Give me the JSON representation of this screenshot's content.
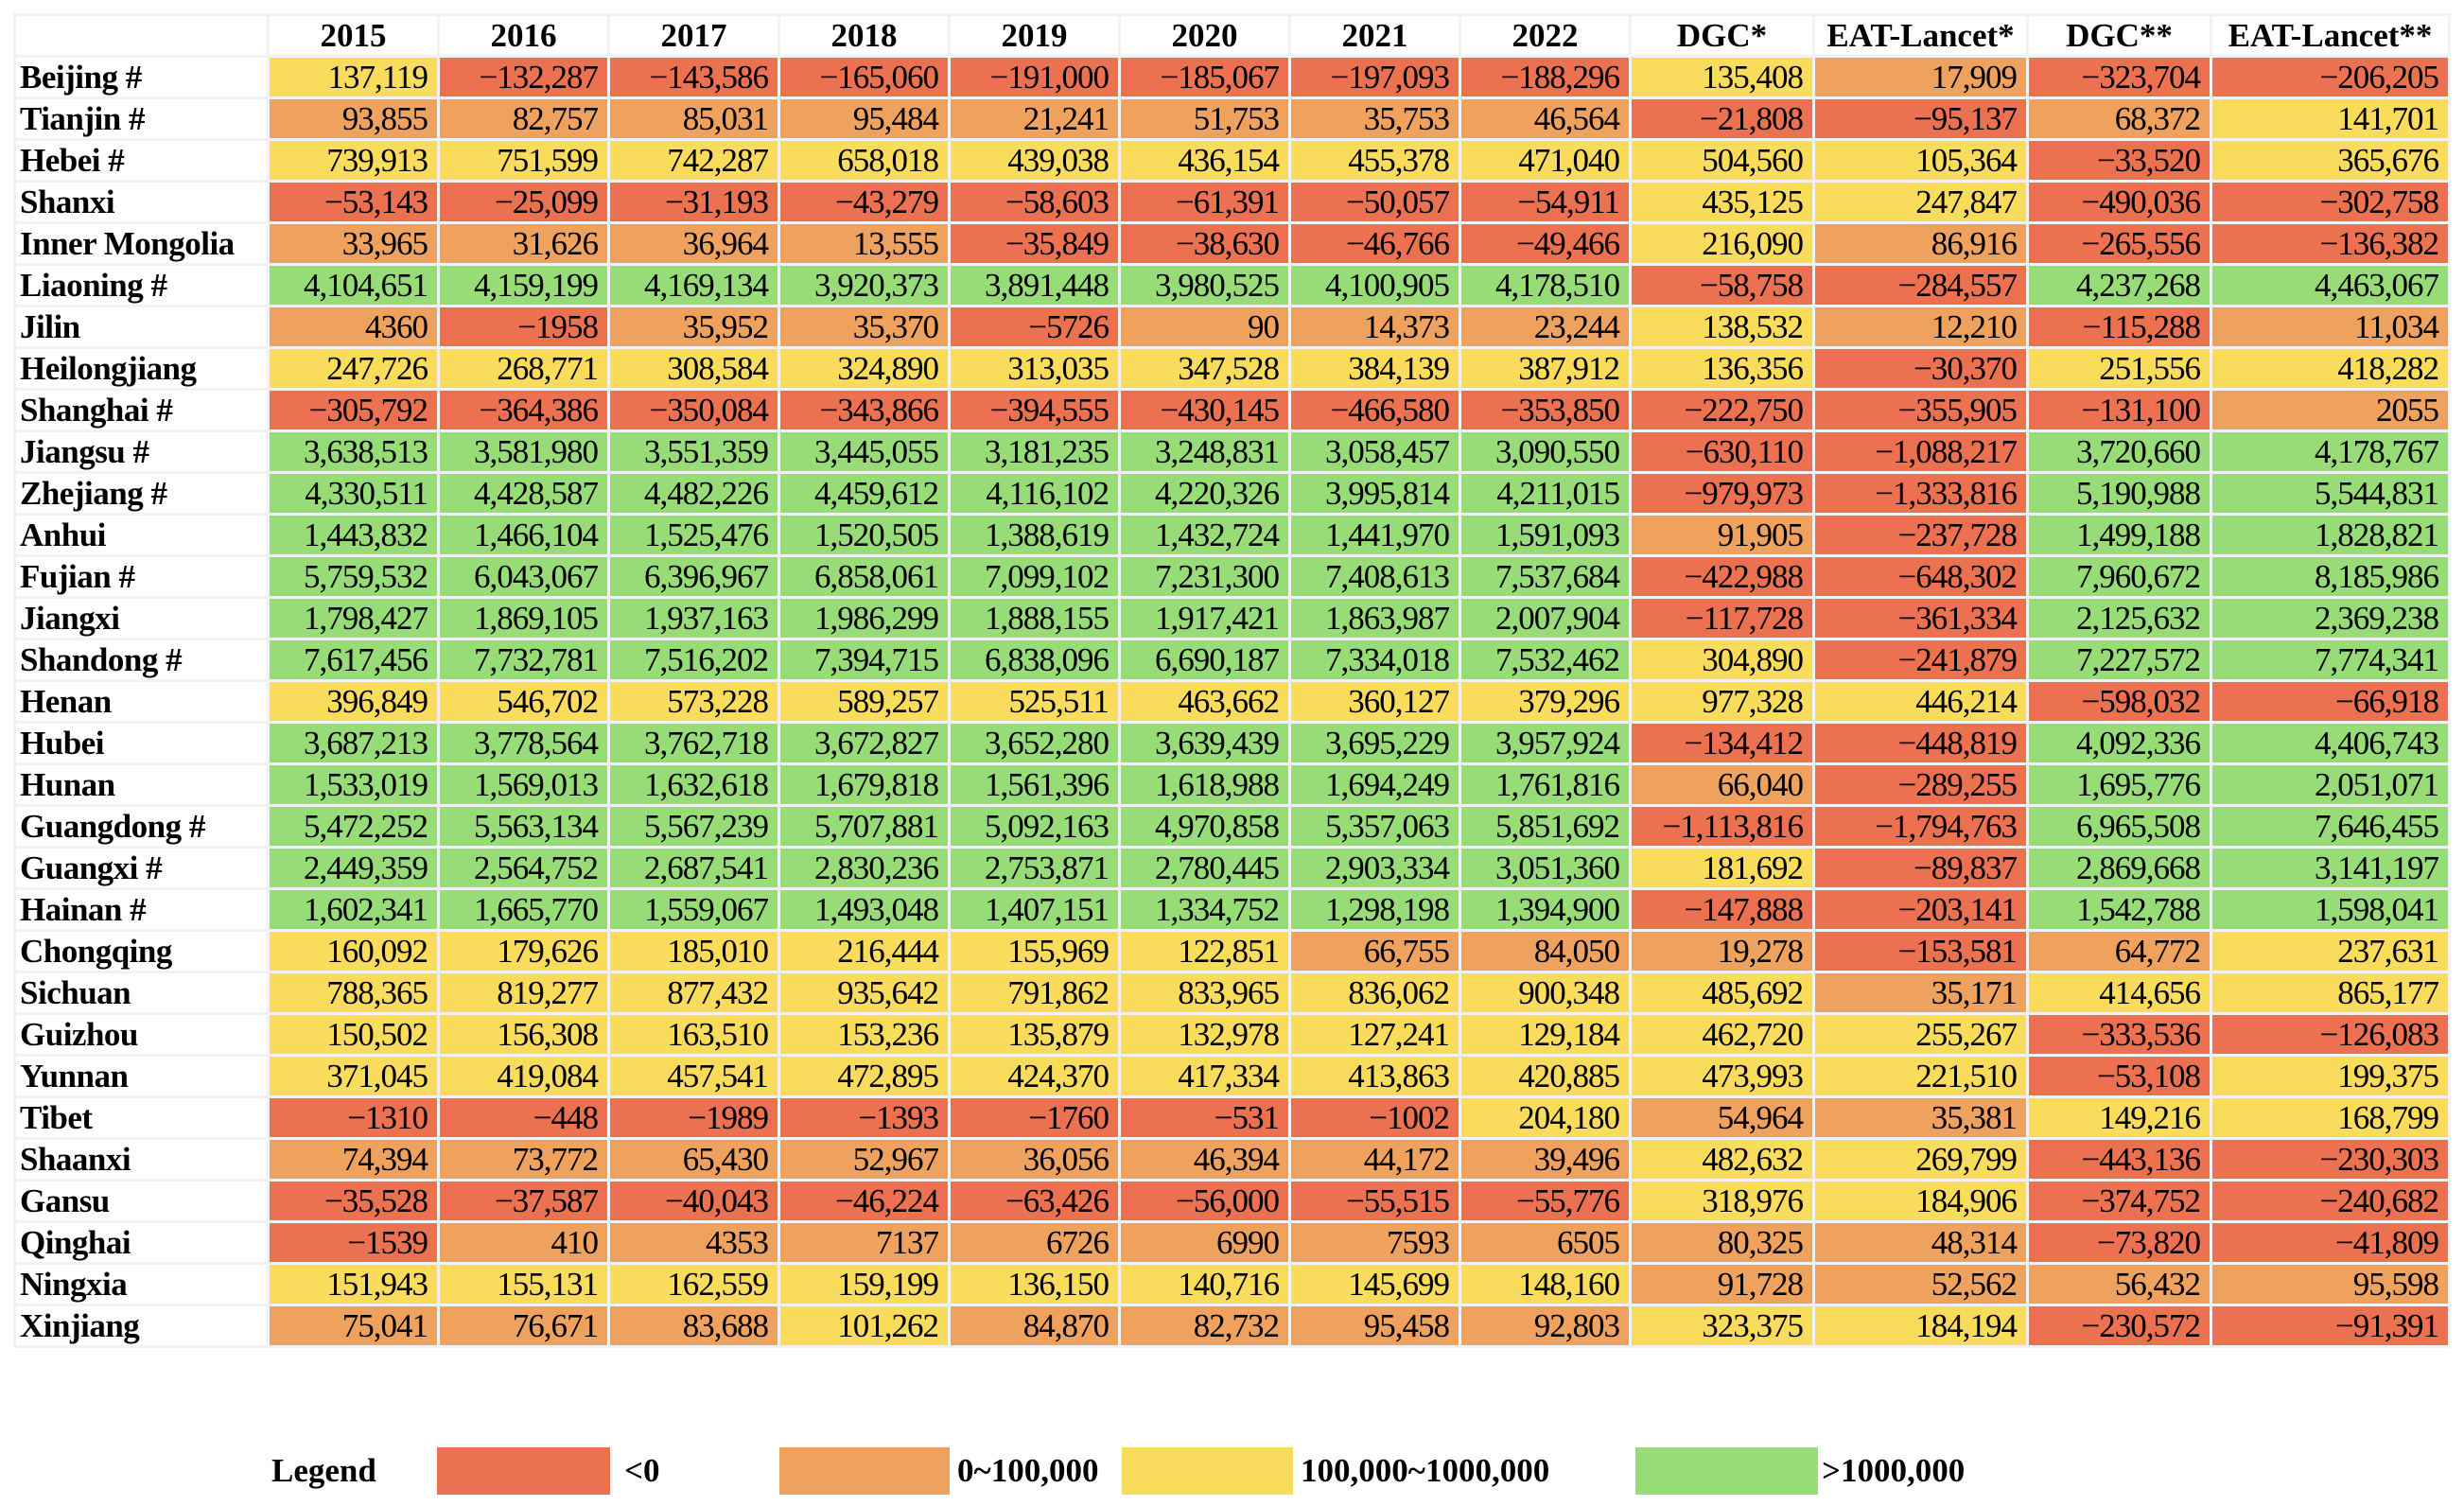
{
  "chart_data": {
    "type": "heatmap",
    "columns": [
      "2015",
      "2016",
      "2017",
      "2018",
      "2019",
      "2020",
      "2021",
      "2022",
      "DGC*",
      "EAT-Lancet*",
      "DGC**",
      "EAT-Lancet**"
    ],
    "rows": [
      {
        "name": "Beijing #",
        "values": [
          "137,119",
          "−132,287",
          "−143,586",
          "−165,060",
          "−191,000",
          "−185,067",
          "−197,093",
          "−188,296",
          "135,408",
          "17,909",
          "−323,704",
          "−206,205"
        ]
      },
      {
        "name": "Tianjin #",
        "values": [
          "93,855",
          "82,757",
          "85,031",
          "95,484",
          "21,241",
          "51,753",
          "35,753",
          "46,564",
          "−21,808",
          "−95,137",
          "68,372",
          "141,701"
        ]
      },
      {
        "name": "Hebei #",
        "values": [
          "739,913",
          "751,599",
          "742,287",
          "658,018",
          "439,038",
          "436,154",
          "455,378",
          "471,040",
          "504,560",
          "105,364",
          "−33,520",
          "365,676"
        ]
      },
      {
        "name": "Shanxi",
        "values": [
          "−53,143",
          "−25,099",
          "−31,193",
          "−43,279",
          "−58,603",
          "−61,391",
          "−50,057",
          "−54,911",
          "435,125",
          "247,847",
          "−490,036",
          "−302,758"
        ]
      },
      {
        "name": "Inner Mongolia",
        "values": [
          "33,965",
          "31,626",
          "36,964",
          "13,555",
          "−35,849",
          "−38,630",
          "−46,766",
          "−49,466",
          "216,090",
          "86,916",
          "−265,556",
          "−136,382"
        ]
      },
      {
        "name": "Liaoning #",
        "values": [
          "4,104,651",
          "4,159,199",
          "4,169,134",
          "3,920,373",
          "3,891,448",
          "3,980,525",
          "4,100,905",
          "4,178,510",
          "−58,758",
          "−284,557",
          "4,237,268",
          "4,463,067"
        ]
      },
      {
        "name": "Jilin",
        "values": [
          "4360",
          "−1958",
          "35,952",
          "35,370",
          "−5726",
          "90",
          "14,373",
          "23,244",
          "138,532",
          "12,210",
          "−115,288",
          "11,034"
        ]
      },
      {
        "name": "Heilongjiang",
        "values": [
          "247,726",
          "268,771",
          "308,584",
          "324,890",
          "313,035",
          "347,528",
          "384,139",
          "387,912",
          "136,356",
          "−30,370",
          "251,556",
          "418,282"
        ]
      },
      {
        "name": "Shanghai #",
        "values": [
          "−305,792",
          "−364,386",
          "−350,084",
          "−343,866",
          "−394,555",
          "−430,145",
          "−466,580",
          "−353,850",
          "−222,750",
          "−355,905",
          "−131,100",
          "2055"
        ]
      },
      {
        "name": "Jiangsu #",
        "values": [
          "3,638,513",
          "3,581,980",
          "3,551,359",
          "3,445,055",
          "3,181,235",
          "3,248,831",
          "3,058,457",
          "3,090,550",
          "−630,110",
          "−1,088,217",
          "3,720,660",
          "4,178,767"
        ]
      },
      {
        "name": "Zhejiang #",
        "values": [
          "4,330,511",
          "4,428,587",
          "4,482,226",
          "4,459,612",
          "4,116,102",
          "4,220,326",
          "3,995,814",
          "4,211,015",
          "−979,973",
          "−1,333,816",
          "5,190,988",
          "5,544,831"
        ]
      },
      {
        "name": "Anhui",
        "values": [
          "1,443,832",
          "1,466,104",
          "1,525,476",
          "1,520,505",
          "1,388,619",
          "1,432,724",
          "1,441,970",
          "1,591,093",
          "91,905",
          "−237,728",
          "1,499,188",
          "1,828,821"
        ]
      },
      {
        "name": "Fujian #",
        "values": [
          "5,759,532",
          "6,043,067",
          "6,396,967",
          "6,858,061",
          "7,099,102",
          "7,231,300",
          "7,408,613",
          "7,537,684",
          "−422,988",
          "−648,302",
          "7,960,672",
          "8,185,986"
        ]
      },
      {
        "name": "Jiangxi",
        "values": [
          "1,798,427",
          "1,869,105",
          "1,937,163",
          "1,986,299",
          "1,888,155",
          "1,917,421",
          "1,863,987",
          "2,007,904",
          "−117,728",
          "−361,334",
          "2,125,632",
          "2,369,238"
        ]
      },
      {
        "name": "Shandong #",
        "values": [
          "7,617,456",
          "7,732,781",
          "7,516,202",
          "7,394,715",
          "6,838,096",
          "6,690,187",
          "7,334,018",
          "7,532,462",
          "304,890",
          "−241,879",
          "7,227,572",
          "7,774,341"
        ]
      },
      {
        "name": "Henan",
        "values": [
          "396,849",
          "546,702",
          "573,228",
          "589,257",
          "525,511",
          "463,662",
          "360,127",
          "379,296",
          "977,328",
          "446,214",
          "−598,032",
          "−66,918"
        ]
      },
      {
        "name": "Hubei",
        "values": [
          "3,687,213",
          "3,778,564",
          "3,762,718",
          "3,672,827",
          "3,652,280",
          "3,639,439",
          "3,695,229",
          "3,957,924",
          "−134,412",
          "−448,819",
          "4,092,336",
          "4,406,743"
        ]
      },
      {
        "name": "Hunan",
        "values": [
          "1,533,019",
          "1,569,013",
          "1,632,618",
          "1,679,818",
          "1,561,396",
          "1,618,988",
          "1,694,249",
          "1,761,816",
          "66,040",
          "−289,255",
          "1,695,776",
          "2,051,071"
        ]
      },
      {
        "name": "Guangdong #",
        "values": [
          "5,472,252",
          "5,563,134",
          "5,567,239",
          "5,707,881",
          "5,092,163",
          "4,970,858",
          "5,357,063",
          "5,851,692",
          "−1,113,816",
          "−1,794,763",
          "6,965,508",
          "7,646,455"
        ]
      },
      {
        "name": "Guangxi #",
        "values": [
          "2,449,359",
          "2,564,752",
          "2,687,541",
          "2,830,236",
          "2,753,871",
          "2,780,445",
          "2,903,334",
          "3,051,360",
          "181,692",
          "−89,837",
          "2,869,668",
          "3,141,197"
        ]
      },
      {
        "name": "Hainan #",
        "values": [
          "1,602,341",
          "1,665,770",
          "1,559,067",
          "1,493,048",
          "1,407,151",
          "1,334,752",
          "1,298,198",
          "1,394,900",
          "−147,888",
          "−203,141",
          "1,542,788",
          "1,598,041"
        ]
      },
      {
        "name": "Chongqing",
        "values": [
          "160,092",
          "179,626",
          "185,010",
          "216,444",
          "155,969",
          "122,851",
          "66,755",
          "84,050",
          "19,278",
          "−153,581",
          "64,772",
          "237,631"
        ]
      },
      {
        "name": "Sichuan",
        "values": [
          "788,365",
          "819,277",
          "877,432",
          "935,642",
          "791,862",
          "833,965",
          "836,062",
          "900,348",
          "485,692",
          "35,171",
          "414,656",
          "865,177"
        ]
      },
      {
        "name": "Guizhou",
        "values": [
          "150,502",
          "156,308",
          "163,510",
          "153,236",
          "135,879",
          "132,978",
          "127,241",
          "129,184",
          "462,720",
          "255,267",
          "−333,536",
          "−126,083"
        ]
      },
      {
        "name": "Yunnan",
        "values": [
          "371,045",
          "419,084",
          "457,541",
          "472,895",
          "424,370",
          "417,334",
          "413,863",
          "420,885",
          "473,993",
          "221,510",
          "−53,108",
          "199,375"
        ]
      },
      {
        "name": "Tibet",
        "values": [
          "−1310",
          "−448",
          "−1989",
          "−1393",
          "−1760",
          "−531",
          "−1002",
          "204,180",
          "54,964",
          "35,381",
          "149,216",
          "168,799"
        ]
      },
      {
        "name": "Shaanxi",
        "values": [
          "74,394",
          "73,772",
          "65,430",
          "52,967",
          "36,056",
          "46,394",
          "44,172",
          "39,496",
          "482,632",
          "269,799",
          "−443,136",
          "−230,303"
        ]
      },
      {
        "name": "Gansu",
        "values": [
          "−35,528",
          "−37,587",
          "−40,043",
          "−46,224",
          "−63,426",
          "−56,000",
          "−55,515",
          "−55,776",
          "318,976",
          "184,906",
          "−374,752",
          "−240,682"
        ]
      },
      {
        "name": "Qinghai",
        "values": [
          "−1539",
          "410",
          "4353",
          "7137",
          "6726",
          "6990",
          "7593",
          "6505",
          "80,325",
          "48,314",
          "−73,820",
          "−41,809"
        ]
      },
      {
        "name": "Ningxia",
        "values": [
          "151,943",
          "155,131",
          "162,559",
          "159,199",
          "136,150",
          "140,716",
          "145,699",
          "148,160",
          "91,728",
          "52,562",
          "56,432",
          "95,598"
        ]
      },
      {
        "name": "Xinjiang",
        "values": [
          "75,041",
          "76,671",
          "83,688",
          "101,262",
          "84,870",
          "82,732",
          "95,458",
          "92,803",
          "323,375",
          "184,194",
          "−230,572",
          "−91,391"
        ]
      }
    ],
    "legend": {
      "title": "Legend",
      "items": [
        {
          "label": "<0",
          "color": "#EC7150"
        },
        {
          "label": "0~100,000",
          "color": "#EFA25E"
        },
        {
          "label": "100,000~1000,000",
          "color": "#F9DC5C"
        },
        {
          "label": ">1000,000",
          "color": "#98DC78"
        }
      ]
    }
  }
}
